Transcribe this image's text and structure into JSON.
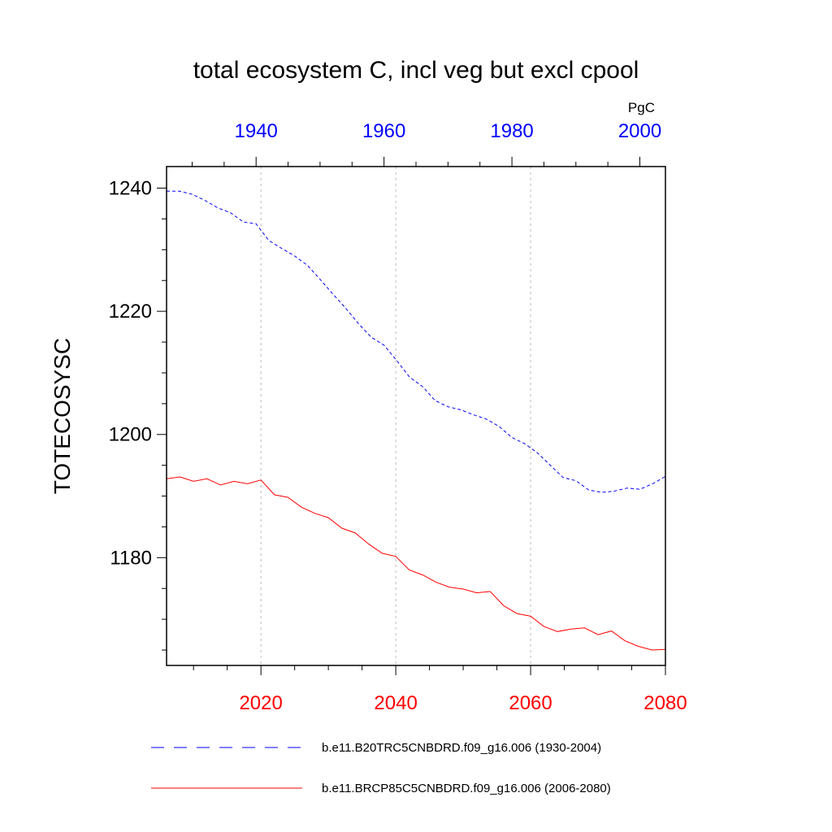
{
  "chart_data": {
    "type": "line",
    "title": "total ecosystem C, incl veg but excl cpool",
    "units": "PgC",
    "ylabel": "TOTECOSYSC",
    "ylim": [
      1162.5,
      1243.5
    ],
    "yticks": [
      1180,
      1200,
      1220,
      1240
    ],
    "yticks_minor_step": 5,
    "top_axis": {
      "color": "#0000ff",
      "range": [
        1926,
        2004
      ],
      "ticks": [
        "1940",
        "1960",
        "1980",
        "2000"
      ],
      "tick_values": [
        1940,
        1960,
        1980,
        2000
      ]
    },
    "bottom_axis": {
      "color": "#ff0000",
      "range": [
        2006,
        2080
      ],
      "ticks": [
        "2020",
        "2040",
        "2060",
        "2080"
      ],
      "tick_values": [
        2020,
        2040,
        2060,
        2080
      ]
    },
    "grid": "vertical dotted at major bottom ticks",
    "legend_position": "bottom",
    "series": [
      {
        "name": "b.e11.B20TRC5CNBDRD.f09_g16.006 (1930-2004)",
        "color": "#0000ff",
        "dash": "dashed",
        "axis": "top",
        "x": [
          1926,
          1928,
          1930,
          1932,
          1934,
          1936,
          1938,
          1940,
          1942,
          1944,
          1946,
          1948,
          1950,
          1952,
          1954,
          1956,
          1958,
          1960,
          1962,
          1964,
          1966,
          1968,
          1970,
          1972,
          1974,
          1976,
          1978,
          1980,
          1982,
          1984,
          1986,
          1988,
          1990,
          1992,
          1994,
          1996,
          1998,
          2000,
          2002,
          2004
        ],
        "values": [
          1239.5,
          1239.5,
          1239,
          1238,
          1236.8,
          1236,
          1234.5,
          1234.2,
          1231.5,
          1230.2,
          1229,
          1227.5,
          1225.2,
          1222.8,
          1220.5,
          1218,
          1215.8,
          1214.5,
          1212,
          1209.3,
          1207.8,
          1205.5,
          1204.5,
          1204,
          1203.2,
          1202.5,
          1201.3,
          1199.5,
          1198.5,
          1197,
          1195,
          1193,
          1192.5,
          1191,
          1190.6,
          1190.8,
          1191.3,
          1191.1,
          1192,
          1193.2
        ]
      },
      {
        "name": "b.e11.BRCP85C5CNBDRD.f09_g16.006 (2006-2080)",
        "color": "#ff0000",
        "dash": "solid",
        "axis": "bottom",
        "x": [
          2006,
          2008,
          2010,
          2012,
          2014,
          2016,
          2018,
          2020,
          2022,
          2024,
          2026,
          2028,
          2030,
          2032,
          2034,
          2036,
          2038,
          2040,
          2042,
          2044,
          2046,
          2048,
          2050,
          2052,
          2054,
          2056,
          2058,
          2060,
          2062,
          2064,
          2066,
          2068,
          2070,
          2072,
          2074,
          2076,
          2078,
          2080
        ],
        "values": [
          1192.8,
          1193.1,
          1192.4,
          1192.8,
          1191.8,
          1192.4,
          1192,
          1192.6,
          1190.2,
          1189.8,
          1188.2,
          1187.2,
          1186.5,
          1184.8,
          1184,
          1182.2,
          1180.7,
          1180.2,
          1178,
          1177.2,
          1176,
          1175.2,
          1174.9,
          1174.3,
          1174.5,
          1172.2,
          1170.9,
          1170.5,
          1168.8,
          1168,
          1168.4,
          1168.6,
          1167.5,
          1168.1,
          1166.5,
          1165.6,
          1165,
          1165.1
        ]
      }
    ]
  }
}
